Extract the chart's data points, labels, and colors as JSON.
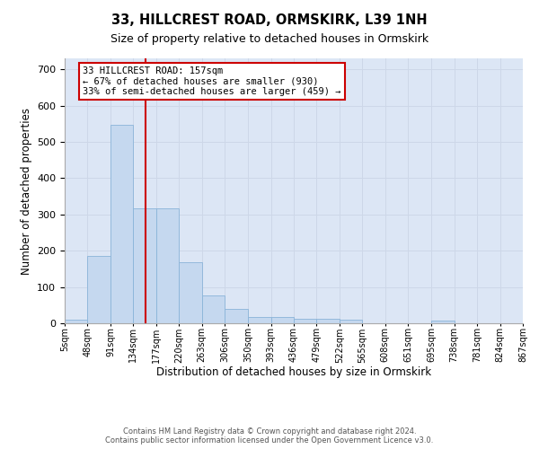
{
  "title": "33, HILLCREST ROAD, ORMSKIRK, L39 1NH",
  "subtitle": "Size of property relative to detached houses in Ormskirk",
  "xlabel": "Distribution of detached houses by size in Ormskirk",
  "ylabel": "Number of detached properties",
  "bin_edges": [
    5,
    48,
    91,
    134,
    177,
    220,
    263,
    306,
    350,
    393,
    436,
    479,
    522,
    565,
    608,
    651,
    695,
    738,
    781,
    824,
    867
  ],
  "bar_heights": [
    9,
    186,
    547,
    316,
    316,
    168,
    77,
    40,
    17,
    17,
    12,
    12,
    10,
    0,
    0,
    0,
    8,
    0,
    0,
    0
  ],
  "bar_color": "#c5d8ef",
  "bar_edgecolor": "#8ab4d8",
  "property_size": 157,
  "vline_color": "#cc0000",
  "annotation_text": "33 HILLCREST ROAD: 157sqm\n← 67% of detached houses are smaller (930)\n33% of semi-detached houses are larger (459) →",
  "annotation_box_facecolor": "#ffffff",
  "annotation_box_edgecolor": "#cc0000",
  "ylim": [
    0,
    730
  ],
  "yticks": [
    0,
    100,
    200,
    300,
    400,
    500,
    600,
    700
  ],
  "tick_label_fontsize": 8,
  "title_fontsize": 10.5,
  "subtitle_fontsize": 9,
  "xlabel_fontsize": 8.5,
  "ylabel_fontsize": 8.5,
  "footnote": "Contains HM Land Registry data © Crown copyright and database right 2024.\nContains public sector information licensed under the Open Government Licence v3.0.",
  "grid_color": "#cdd7e8",
  "background_color": "#dce6f5"
}
